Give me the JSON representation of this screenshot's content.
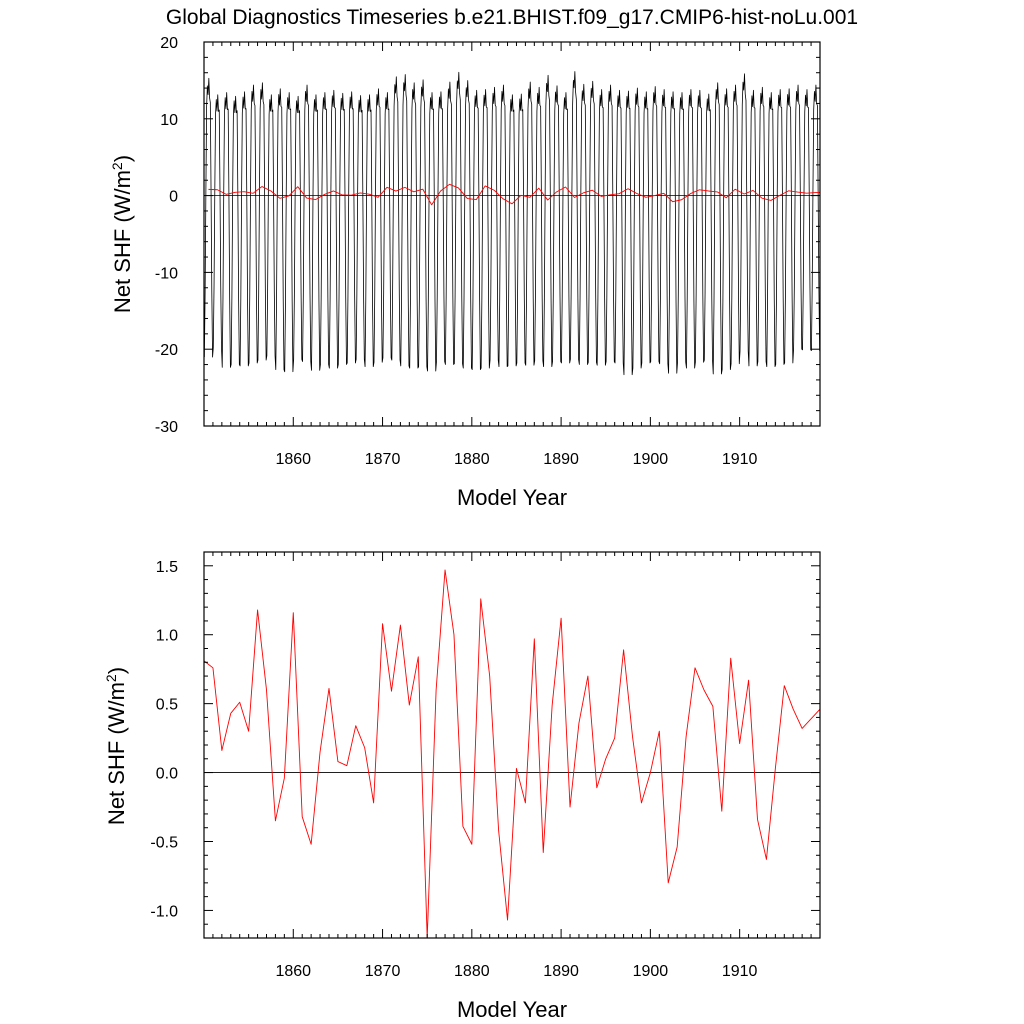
{
  "title": "Global Diagnostics Timeseries b.e21.BHIST.f09_g17.CMIP6-hist-noLu.001",
  "chart_data": [
    {
      "type": "line",
      "title": "Global Diagnostics Timeseries b.e21.BHIST.f09_g17.CMIP6-hist-noLu.001",
      "xlabel": "Model Year",
      "ylabel_main": "Net SHF (W/m",
      "ylabel_sup": "2",
      "ylabel_tail": ")",
      "xlim": [
        1850,
        1919
      ],
      "ylim": [
        -30,
        20
      ],
      "xticks": [
        1860,
        1870,
        1880,
        1890,
        1900,
        1910
      ],
      "yticks": [
        20,
        10,
        0,
        -10,
        -20,
        -30
      ],
      "reference_line": 0,
      "series": [
        {
          "color": "#000000",
          "style": "monthly",
          "annual_peaks": [
            15.4,
            13.2,
            13.5,
            13.0,
            13.6,
            14.5,
            14.8,
            13.2,
            14.0,
            13.5,
            13.0,
            14.5,
            13.2,
            13.5,
            13.8,
            13.4,
            13.6,
            13.1,
            13.2,
            14.0,
            13.5,
            15.6,
            15.9,
            14.8,
            15.2,
            13.5,
            13.6,
            14.9,
            16.2,
            15.1,
            13.8,
            13.9,
            14.2,
            14.5,
            13.2,
            13.3,
            14.9,
            14.2,
            15.8,
            14.4,
            13.5,
            16.3,
            14.6,
            15.0,
            13.9,
            14.5,
            13.8,
            13.7,
            14.1,
            13.6,
            14.3,
            13.9,
            13.6,
            13.5,
            13.9,
            13.8,
            13.3,
            14.8,
            14.0,
            14.5,
            16.0,
            13.8,
            14.2,
            13.5,
            13.9,
            14.0,
            14.5,
            13.9,
            14.5,
            13.8
          ],
          "annual_troughs": [
            -22.2,
            -20.9,
            -23.6,
            -23.2,
            -23.4,
            -23.0,
            -22.6,
            -22.0,
            -23.9,
            -24.2,
            -22.5,
            -22.8,
            -24.0,
            -23.2,
            -23.7,
            -23.2,
            -23.0,
            -22.5,
            -23.5,
            -22.9,
            -22.3,
            -22.6,
            -23.4,
            -23.7,
            -23.5,
            -24.1,
            -22.8,
            -23.2,
            -23.1,
            -23.7,
            -23.9,
            -23.7,
            -22.6,
            -23.5,
            -23.4,
            -23.0,
            -23.3,
            -22.7,
            -23.5,
            -22.8,
            -23.0,
            -22.5,
            -23.2,
            -22.9,
            -23.3,
            -22.8,
            -23.0,
            -24.6,
            -23.7,
            -23.0,
            -22.8,
            -23.1,
            -24.4,
            -22.9,
            -23.7,
            -22.9,
            -22.6,
            -24.5,
            -23.9,
            -23.1,
            -21.4,
            -23.4,
            -22.8,
            -23.5,
            -23.2,
            -23.0,
            -21.1,
            -21.2,
            -21.3,
            -21.5
          ]
        },
        {
          "color": "#ff0000",
          "style": "annual",
          "x": [
            1850.5,
            1851.5,
            1852.5,
            1853.5,
            1854.5,
            1855.5,
            1856.5,
            1857.5,
            1858.5,
            1859.5,
            1860.5,
            1861.5,
            1862.5,
            1863.5,
            1864.5,
            1865.5,
            1866.5,
            1867.5,
            1868.5,
            1869.5,
            1870.5,
            1871.5,
            1872.5,
            1873.5,
            1874.5,
            1875.5,
            1876.5,
            1877.5,
            1878.5,
            1879.5,
            1880.5,
            1881.5,
            1882.5,
            1883.5,
            1884.5,
            1885.5,
            1886.5,
            1887.5,
            1888.5,
            1889.5,
            1890.5,
            1891.5,
            1892.5,
            1893.5,
            1894.5,
            1895.5,
            1896.5,
            1897.5,
            1898.5,
            1899.5,
            1900.5,
            1901.5,
            1902.5,
            1903.5,
            1904.5,
            1905.5,
            1906.5,
            1907.5,
            1908.5,
            1909.5,
            1910.5,
            1911.5,
            1912.5,
            1913.5,
            1914.5,
            1915.5,
            1916.5,
            1917.5,
            1918.5,
            1919.5
          ],
          "values": [
            0.81,
            0.76,
            0.16,
            0.43,
            0.51,
            0.3,
            1.18,
            0.6,
            -0.35,
            -0.04,
            1.16,
            -0.32,
            -0.52,
            0.15,
            0.61,
            0.08,
            0.05,
            0.34,
            0.18,
            -0.22,
            1.08,
            0.59,
            1.07,
            0.49,
            0.84,
            -1.2,
            0.6,
            1.47,
            1.0,
            -0.39,
            -0.52,
            1.26,
            0.7,
            -0.42,
            -1.07,
            0.03,
            -0.22,
            0.97,
            -0.58,
            0.49,
            1.12,
            -0.25,
            0.36,
            0.7,
            -0.11,
            0.1,
            0.25,
            0.89,
            0.26,
            -0.22,
            0.0,
            0.3,
            -0.8,
            -0.54,
            0.26,
            0.76,
            0.6,
            0.48,
            -0.28,
            0.83,
            0.21,
            0.67,
            -0.34,
            -0.63,
            0.03,
            0.63,
            0.46,
            0.32,
            0.39,
            0.46
          ]
        }
      ]
    },
    {
      "type": "line",
      "xlabel": "Model Year",
      "ylabel_main": "Net SHF (W/m",
      "ylabel_sup": "2",
      "ylabel_tail": ")",
      "xlim": [
        1850,
        1919
      ],
      "ylim": [
        -1.2,
        1.6
      ],
      "xticks": [
        1860,
        1870,
        1880,
        1890,
        1900,
        1910
      ],
      "yticks": [
        1.5,
        1.0,
        0.5,
        0.0,
        -0.5,
        -1.0
      ],
      "ytick_labels": [
        "1.5",
        "1.0",
        "0.5",
        "0.0",
        "-0.5",
        "-1.0"
      ],
      "reference_line": 0,
      "series": [
        {
          "color": "#ff0000",
          "style": "annual",
          "x": [
            1850.0,
            1851.0,
            1852.0,
            1853.0,
            1854.0,
            1855.0,
            1856.0,
            1857.0,
            1858.0,
            1859.0,
            1860.0,
            1861.0,
            1862.0,
            1863.0,
            1864.0,
            1865.0,
            1866.0,
            1867.0,
            1868.0,
            1869.0,
            1870.0,
            1871.0,
            1872.0,
            1873.0,
            1874.0,
            1875.0,
            1876.0,
            1877.0,
            1878.0,
            1879.0,
            1880.0,
            1881.0,
            1882.0,
            1883.0,
            1884.0,
            1885.0,
            1886.0,
            1887.0,
            1888.0,
            1889.0,
            1890.0,
            1891.0,
            1892.0,
            1893.0,
            1894.0,
            1895.0,
            1896.0,
            1897.0,
            1898.0,
            1899.0,
            1900.0,
            1901.0,
            1902.0,
            1903.0,
            1904.0,
            1905.0,
            1906.0,
            1907.0,
            1908.0,
            1909.0,
            1910.0,
            1911.0,
            1912.0,
            1913.0,
            1914.0,
            1915.0,
            1916.0,
            1917.0,
            1918.0,
            1919.0
          ],
          "values": [
            0.81,
            0.76,
            0.16,
            0.43,
            0.51,
            0.3,
            1.18,
            0.6,
            -0.35,
            -0.04,
            1.16,
            -0.32,
            -0.52,
            0.15,
            0.61,
            0.08,
            0.05,
            0.34,
            0.18,
            -0.22,
            1.08,
            0.59,
            1.07,
            0.49,
            0.84,
            -1.2,
            0.6,
            1.47,
            1.0,
            -0.39,
            -0.52,
            1.26,
            0.7,
            -0.42,
            -1.07,
            0.03,
            -0.22,
            0.97,
            -0.58,
            0.49,
            1.12,
            -0.25,
            0.36,
            0.7,
            -0.11,
            0.1,
            0.25,
            0.89,
            0.26,
            -0.22,
            0.0,
            0.3,
            -0.8,
            -0.54,
            0.26,
            0.76,
            0.6,
            0.48,
            -0.28,
            0.83,
            0.21,
            0.67,
            -0.34,
            -0.63,
            0.03,
            0.63,
            0.46,
            0.32,
            0.39,
            0.46
          ]
        }
      ]
    }
  ]
}
